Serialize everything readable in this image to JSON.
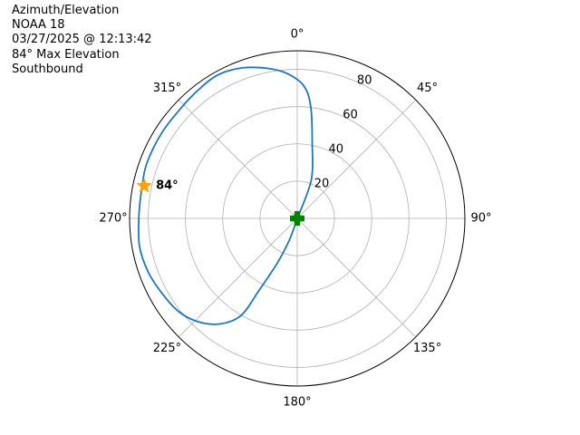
{
  "header": {
    "lines": [
      "Azimuth/Elevation",
      "NOAA 18",
      "03/27/2025 @ 12:13:42",
      "84° Max Elevation",
      "Southbound"
    ]
  },
  "chart_data": {
    "type": "polar",
    "theta_direction": "clockwise",
    "theta_zero": "N",
    "r_ticks": [
      20,
      40,
      60,
      80
    ],
    "r_labels": [
      "20",
      "40",
      "60",
      "80"
    ],
    "r_max": 90,
    "theta_ticks_deg": [
      0,
      45,
      90,
      135,
      180,
      225,
      270,
      315
    ],
    "theta_labels": [
      "0°",
      "45°",
      "90°",
      "135°",
      "180°",
      "225°",
      "270°",
      "315°"
    ],
    "grid": true,
    "colors": {
      "track": "#1f77b4",
      "max_marker": "#ff9f0e",
      "start_marker": "#008000",
      "grid": "#b0b0b0"
    },
    "series": [
      {
        "points": [
          {
            "az": 0,
            "r": 0
          },
          {
            "az": 20,
            "r": 22
          },
          {
            "az": 11,
            "r": 42
          },
          {
            "az": 7,
            "r": 60
          },
          {
            "az": 3,
            "r": 71
          },
          {
            "az": 356,
            "r": 78
          },
          {
            "az": 349,
            "r": 82
          },
          {
            "az": 340,
            "r": 86
          },
          {
            "az": 331,
            "r": 88
          },
          {
            "az": 322,
            "r": 87
          },
          {
            "az": 313,
            "r": 86
          },
          {
            "az": 302,
            "r": 86
          },
          {
            "az": 290,
            "r": 86
          },
          {
            "az": 281,
            "r": 85
          },
          {
            "az": 271,
            "r": 85
          },
          {
            "az": 260,
            "r": 86
          },
          {
            "az": 250,
            "r": 85
          },
          {
            "az": 241,
            "r": 83
          },
          {
            "az": 232,
            "r": 81
          },
          {
            "az": 224,
            "r": 77
          },
          {
            "az": 216,
            "r": 70
          },
          {
            "az": 210,
            "r": 60
          },
          {
            "az": 208,
            "r": 44
          },
          {
            "az": 204,
            "r": 26
          },
          {
            "az": 200,
            "r": 12
          },
          {
            "az": 180,
            "r": 0
          }
        ]
      }
    ],
    "max_marker": {
      "az": 282,
      "r": 84,
      "label": "84°"
    },
    "start_marker": {
      "az": 0,
      "r": 0
    }
  }
}
